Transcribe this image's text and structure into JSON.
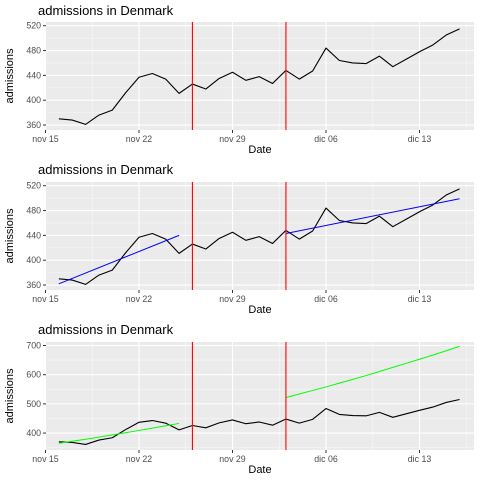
{
  "chart_data": [
    {
      "type": "line",
      "title": "admissions in Denmark",
      "xlabel": "Date",
      "ylabel": "admissions",
      "x_ticks": [
        "nov 15",
        "nov 22",
        "nov 29",
        "dic 06",
        "dic 13"
      ],
      "y_ticks": [
        360,
        400,
        440,
        480,
        520
      ],
      "ylim": [
        352,
        526
      ],
      "grid": true,
      "legend": "none",
      "x": [
        "2020-11-16",
        "2020-11-17",
        "2020-11-18",
        "2020-11-19",
        "2020-11-20",
        "2020-11-21",
        "2020-11-22",
        "2020-11-23",
        "2020-11-24",
        "2020-11-25",
        "2020-11-26",
        "2020-11-27",
        "2020-11-28",
        "2020-11-29",
        "2020-11-30",
        "2020-12-01",
        "2020-12-02",
        "2020-12-03",
        "2020-12-04",
        "2020-12-05",
        "2020-12-06",
        "2020-12-07",
        "2020-12-08",
        "2020-12-09",
        "2020-12-10",
        "2020-12-11",
        "2020-12-12",
        "2020-12-13",
        "2020-12-14",
        "2020-12-15",
        "2020-12-16"
      ],
      "series": [
        {
          "values": [
            370,
            368,
            361,
            376,
            384,
            412,
            437,
            443,
            434,
            411,
            426,
            418,
            435,
            445,
            432,
            438,
            427,
            448,
            434,
            447,
            484,
            464,
            460,
            459,
            471,
            454,
            466,
            478,
            489,
            505,
            515
          ],
          "color": "#000000"
        }
      ],
      "vlines": [
        {
          "x": "2020-11-26",
          "color": "#ff0000"
        },
        {
          "x": "2020-12-03",
          "color": "#ff0000"
        }
      ],
      "fits": []
    },
    {
      "type": "line",
      "title": "admissions in Denmark",
      "xlabel": "Date",
      "ylabel": "admissions",
      "x_ticks": [
        "nov 15",
        "nov 22",
        "nov 29",
        "dic 06",
        "dic 13"
      ],
      "y_ticks": [
        360,
        400,
        440,
        480,
        520
      ],
      "ylim": [
        352,
        526
      ],
      "grid": true,
      "legend": "none",
      "x": [
        "2020-11-16",
        "2020-11-17",
        "2020-11-18",
        "2020-11-19",
        "2020-11-20",
        "2020-11-21",
        "2020-11-22",
        "2020-11-23",
        "2020-11-24",
        "2020-11-25",
        "2020-11-26",
        "2020-11-27",
        "2020-11-28",
        "2020-11-29",
        "2020-11-30",
        "2020-12-01",
        "2020-12-02",
        "2020-12-03",
        "2020-12-04",
        "2020-12-05",
        "2020-12-06",
        "2020-12-07",
        "2020-12-08",
        "2020-12-09",
        "2020-12-10",
        "2020-12-11",
        "2020-12-12",
        "2020-12-13",
        "2020-12-14",
        "2020-12-15",
        "2020-12-16"
      ],
      "series": [
        {
          "values": [
            370,
            368,
            361,
            376,
            384,
            412,
            437,
            443,
            434,
            411,
            426,
            418,
            435,
            445,
            432,
            438,
            427,
            448,
            434,
            447,
            484,
            464,
            460,
            459,
            471,
            454,
            466,
            478,
            489,
            505,
            515
          ],
          "color": "#000000"
        }
      ],
      "vlines": [
        {
          "x": "2020-11-26",
          "color": "#ff0000"
        },
        {
          "x": "2020-12-03",
          "color": "#ff0000"
        }
      ],
      "fits": [
        {
          "x": [
            "2020-11-16",
            "2020-11-25"
          ],
          "values": [
            362,
            440
          ],
          "color": "#0000ff"
        },
        {
          "x": [
            "2020-12-03",
            "2020-12-16"
          ],
          "values": [
            443,
            499
          ],
          "color": "#0000ff"
        }
      ]
    },
    {
      "type": "line",
      "title": "admissions in Denmark",
      "xlabel": "Date",
      "ylabel": "admissions",
      "x_ticks": [
        "nov 15",
        "nov 22",
        "nov 29",
        "dic 06",
        "dic 13"
      ],
      "y_ticks": [
        400,
        500,
        600,
        700
      ],
      "ylim": [
        342,
        712
      ],
      "grid": true,
      "legend": "none",
      "x": [
        "2020-11-16",
        "2020-11-17",
        "2020-11-18",
        "2020-11-19",
        "2020-11-20",
        "2020-11-21",
        "2020-11-22",
        "2020-11-23",
        "2020-11-24",
        "2020-11-25",
        "2020-11-26",
        "2020-11-27",
        "2020-11-28",
        "2020-11-29",
        "2020-11-30",
        "2020-12-01",
        "2020-12-02",
        "2020-12-03",
        "2020-12-04",
        "2020-12-05",
        "2020-12-06",
        "2020-12-07",
        "2020-12-08",
        "2020-12-09",
        "2020-12-10",
        "2020-12-11",
        "2020-12-12",
        "2020-12-13",
        "2020-12-14",
        "2020-12-15",
        "2020-12-16"
      ],
      "series": [
        {
          "values": [
            370,
            368,
            361,
            376,
            384,
            412,
            437,
            443,
            434,
            411,
            426,
            418,
            435,
            445,
            432,
            438,
            427,
            448,
            434,
            447,
            484,
            464,
            460,
            459,
            471,
            454,
            466,
            478,
            489,
            505,
            515
          ],
          "color": "#000000"
        }
      ],
      "vlines": [
        {
          "x": "2020-11-26",
          "color": "#ff0000"
        },
        {
          "x": "2020-12-03",
          "color": "#ff0000"
        }
      ],
      "fits": [
        {
          "x": [
            "2020-11-16",
            "2020-11-17",
            "2020-11-18",
            "2020-11-19",
            "2020-11-20",
            "2020-11-21",
            "2020-11-22",
            "2020-11-23",
            "2020-11-24",
            "2020-11-25"
          ],
          "values": [
            365,
            372,
            379,
            386,
            394,
            401,
            409,
            417,
            425,
            433
          ],
          "color": "#00ff00"
        },
        {
          "x": [
            "2020-12-03",
            "2020-12-04",
            "2020-12-05",
            "2020-12-06",
            "2020-12-07",
            "2020-12-08",
            "2020-12-09",
            "2020-12-10",
            "2020-12-11",
            "2020-12-12",
            "2020-12-13",
            "2020-12-14",
            "2020-12-15",
            "2020-12-16"
          ],
          "values": [
            522,
            534,
            546,
            558,
            571,
            584,
            597,
            611,
            625,
            639,
            653,
            667,
            682,
            697
          ],
          "color": "#00ff00"
        }
      ]
    }
  ]
}
